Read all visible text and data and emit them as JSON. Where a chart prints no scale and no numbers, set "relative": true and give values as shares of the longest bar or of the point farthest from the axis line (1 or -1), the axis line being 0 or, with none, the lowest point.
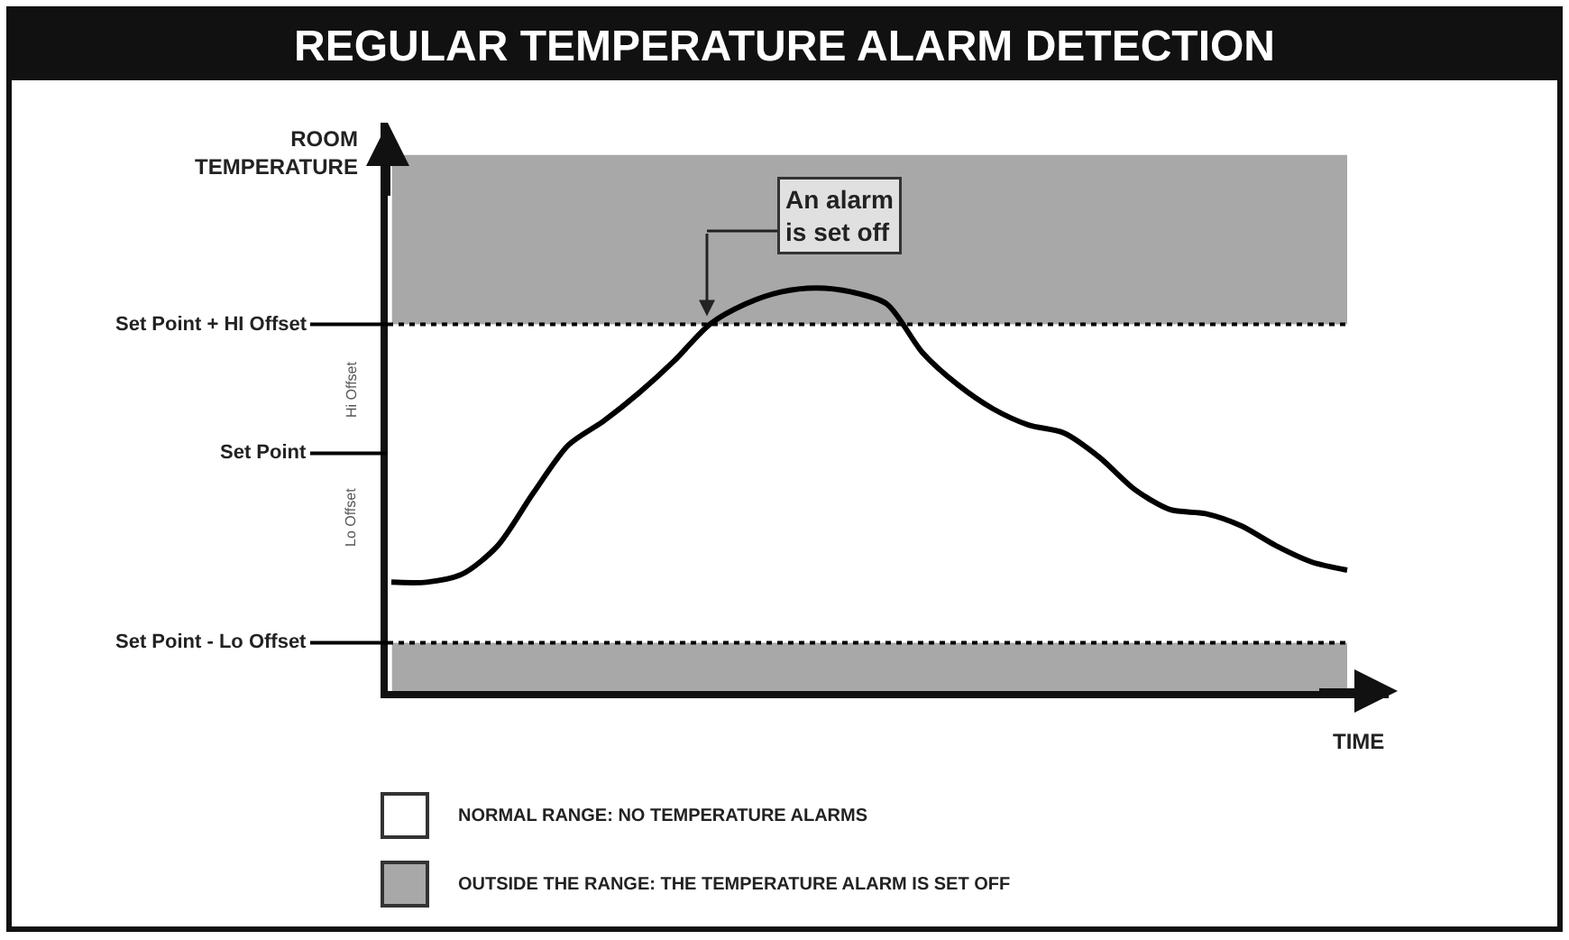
{
  "chart_data": {
    "type": "line",
    "title": "REGULAR TEMPERATURE ALARM DETECTION",
    "xlabel": "TIME",
    "relative": true,
    "categories": [
      null,
      null,
      null,
      null,
      null,
      null,
      null,
      null,
      null,
      null,
      null,
      null,
      null,
      null,
      null,
      null,
      null,
      null,
      null,
      null,
      null,
      null,
      null,
      null,
      null,
      null,
      null,
      null
    ],
    "series": [
      {
        "color": "#000000",
        "values": [
          0.27,
          0.27,
          0.29,
          0.36,
          0.49,
          0.61,
          0.67,
          0.74,
          0.82,
          0.91,
          0.96,
          0.99,
          1.0,
          0.99,
          0.96,
          0.84,
          0.76,
          0.7,
          0.66,
          0.64,
          0.58,
          0.5,
          0.45,
          0.44,
          0.41,
          0.36,
          0.32,
          0.3
        ]
      }
    ],
    "ref_lines": [
      {
        "axis": "y",
        "value": 0.91,
        "label": "Set Point + HI Offset",
        "color": "#000000",
        "line_style": "dotted"
      },
      {
        "axis": "y",
        "value": 0.59,
        "label": "Set Point"
      },
      {
        "axis": "y",
        "value": 0.12,
        "label": "Set Point - Lo Offset",
        "color": "#000000",
        "line_style": "dotted"
      }
    ],
    "bands": [
      {
        "axis": "y",
        "from": 0.91,
        "to": 1.33,
        "color": "#a8a8a8"
      },
      {
        "axis": "y",
        "from": 0,
        "to": 0.12,
        "color": "#a8a8a8"
      }
    ],
    "annotations": [
      "An alarm\nis set off",
      "Hi Offset",
      "Lo Offset",
      "ROOM\nTEMPERATURE",
      "NORMAL RANGE: NO TEMPERATURE ALARMS",
      "OUTSIDE THE RANGE: THE TEMPERATURE ALARM IS SET OFF"
    ],
    "marker": "none",
    "line_style": "solid"
  }
}
